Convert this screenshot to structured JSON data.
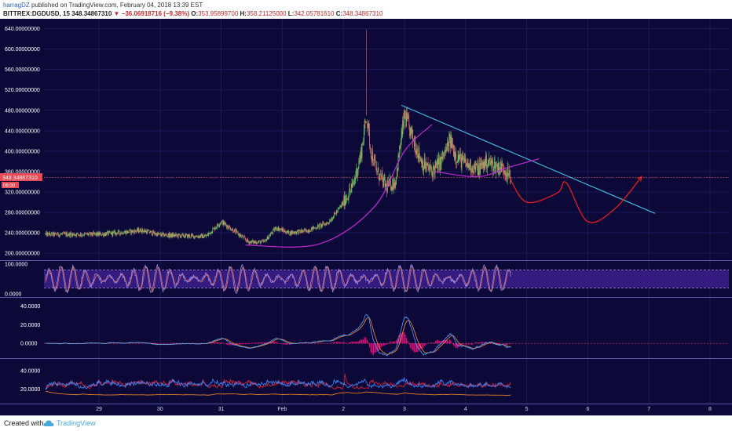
{
  "header": {
    "author": "harragDZ",
    "published_text": "published on TradingView.com, February 04, 2018 13:39 EST",
    "symbol": "BITTREX:DGDUSD, 15",
    "last": "348.34867310",
    "change": "▼ −36.06918716 (−9.38%)",
    "open_label": "O:",
    "open": "353.95899700",
    "high_label": "H:",
    "high": "358.21125000",
    "low_label": "L:",
    "low": "342.05781610",
    "close_label": "C:",
    "close": "348.34867310"
  },
  "price_badge": {
    "value": "348.34867310",
    "timer": "06:00"
  },
  "footer": {
    "created_with": "Created with",
    "brand": "TradingView",
    "icon": "tradingview-cloud-icon"
  },
  "colors": {
    "background": "#0c0838",
    "grid": "#1d1a57",
    "candle_up": "#5fd35a",
    "candle_down": "#e86a6a",
    "curve": "#c42bd3",
    "trendline": "#42b8dc",
    "projection": "#e31d1d",
    "stoch_k": "#9a86e8",
    "stoch_d": "#e07050",
    "stoch_band": "#3c1f8c",
    "macd_line": "#4aa2ff",
    "signal_line": "#ff8a3a",
    "hist": "#e0107a",
    "dmi_plus": "#3a8cff",
    "dmi_minus": "#e0203a",
    "adx": "#ff8c1a",
    "price_badge": "#e84a55"
  },
  "chart_data": [
    {
      "type": "candlestick",
      "symbol": "BITTREX:DGDUSD",
      "interval": "15",
      "x_tick_labels": [
        "29",
        "30",
        "31",
        "Feb",
        "2",
        "3",
        "4",
        "5",
        "6",
        "7",
        "8"
      ],
      "x_ticks_day": [
        0,
        1,
        2,
        3,
        4,
        5,
        6,
        7,
        8,
        9,
        10
      ],
      "y_tick_labels": [
        "200.00000000",
        "240.00000000",
        "280.00000000",
        "320.00000000",
        "360.00000000",
        "400.00000000",
        "440.00000000",
        "480.00000000",
        "520.00000000",
        "560.00000000",
        "600.00000000",
        "640.00000000"
      ],
      "ylim": [
        188,
        650
      ],
      "key_points": [
        {
          "day": 0.0,
          "price": 237
        },
        {
          "day": 0.4,
          "price": 241
        },
        {
          "day": 0.7,
          "price": 245
        },
        {
          "day": 1.0,
          "price": 236
        },
        {
          "day": 1.4,
          "price": 234
        },
        {
          "day": 1.75,
          "price": 233
        },
        {
          "day": 2.0,
          "price": 262
        },
        {
          "day": 2.2,
          "price": 245
        },
        {
          "day": 2.45,
          "price": 222
        },
        {
          "day": 2.7,
          "price": 222
        },
        {
          "day": 2.9,
          "price": 250
        },
        {
          "day": 3.1,
          "price": 240
        },
        {
          "day": 3.4,
          "price": 244
        },
        {
          "day": 3.75,
          "price": 260
        },
        {
          "day": 3.95,
          "price": 290
        },
        {
          "day": 4.15,
          "price": 330
        },
        {
          "day": 4.28,
          "price": 390
        },
        {
          "day": 4.38,
          "price": 470
        },
        {
          "day": 4.45,
          "price": 400
        },
        {
          "day": 4.55,
          "price": 360
        },
        {
          "day": 4.7,
          "price": 330
        },
        {
          "day": 4.85,
          "price": 340
        },
        {
          "day": 5.0,
          "price": 470
        },
        {
          "day": 5.15,
          "price": 420
        },
        {
          "day": 5.3,
          "price": 375
        },
        {
          "day": 5.45,
          "price": 360
        },
        {
          "day": 5.6,
          "price": 380
        },
        {
          "day": 5.75,
          "price": 420
        },
        {
          "day": 5.85,
          "price": 390
        },
        {
          "day": 6.0,
          "price": 375
        },
        {
          "day": 6.2,
          "price": 365
        },
        {
          "day": 6.35,
          "price": 380
        },
        {
          "day": 6.5,
          "price": 370
        },
        {
          "day": 6.62,
          "price": 368
        },
        {
          "day": 6.72,
          "price": 350
        }
      ],
      "spike": {
        "day": 4.38,
        "high": 638,
        "low": 470
      },
      "last_price": 348.3487,
      "annotations": {
        "trendline": {
          "from": {
            "day": 4.95,
            "price": 490
          },
          "to": {
            "day": 9.1,
            "price": 278
          }
        },
        "cup_curve": {
          "points": [
            {
              "day": 2.4,
              "price": 216
            },
            {
              "day": 3.6,
              "price": 218
            },
            {
              "day": 4.5,
              "price": 290
            },
            {
              "day": 5.0,
              "price": 400
            },
            {
              "day": 5.45,
              "price": 452
            }
          ]
        },
        "cup2_curve": {
          "points": [
            {
              "day": 5.5,
              "price": 360
            },
            {
              "day": 6.2,
              "price": 350
            },
            {
              "day": 6.7,
              "price": 368
            },
            {
              "day": 7.2,
              "price": 385
            }
          ]
        },
        "projection": {
          "points": [
            {
              "day": 6.72,
              "price": 348
            },
            {
              "day": 7.0,
              "price": 300
            },
            {
              "day": 7.5,
              "price": 318
            },
            {
              "day": 7.65,
              "price": 338
            },
            {
              "day": 8.0,
              "price": 262
            },
            {
              "day": 8.45,
              "price": 288
            },
            {
              "day": 8.88,
              "price": 350
            }
          ]
        }
      }
    },
    {
      "type": "line",
      "name": "stochastic",
      "y_tick_labels": [
        "0.0000",
        "100.0000"
      ],
      "ylim": [
        -8,
        108
      ],
      "band": [
        20,
        80
      ]
    },
    {
      "type": "line",
      "name": "macd",
      "y_tick_labels": [
        "0.0000",
        "20.0000",
        "40.0000"
      ],
      "ylim": [
        -15,
        48
      ]
    },
    {
      "type": "line",
      "name": "dmi",
      "y_tick_labels": [
        "20.0000",
        "40.0000"
      ],
      "ylim": [
        5,
        52
      ]
    }
  ]
}
